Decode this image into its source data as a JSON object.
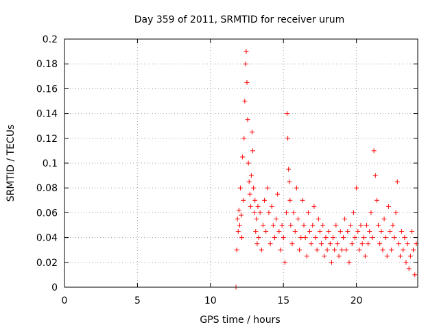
{
  "chart_data": {
    "type": "scatter",
    "title": "Day 359 of 2011, SRMTID for receiver urum",
    "xlabel": "GPS time / hours",
    "ylabel": "SRMTID / TECUs",
    "xlim": [
      0,
      24.2
    ],
    "ylim": [
      0,
      0.2
    ],
    "grid": true,
    "marker": "plus",
    "colors": {
      "points": "#ff0000",
      "grid": "#a0a0a0",
      "frame": "#000000"
    },
    "x_ticks": [
      {
        "value": 0,
        "label": "0"
      },
      {
        "value": 5,
        "label": "5"
      },
      {
        "value": 10,
        "label": "10"
      },
      {
        "value": 15,
        "label": "15"
      },
      {
        "value": 20,
        "label": "20"
      }
    ],
    "y_ticks": [
      {
        "value": 0,
        "label": "0"
      },
      {
        "value": 0.02,
        "label": "0.02"
      },
      {
        "value": 0.04,
        "label": "0.04"
      },
      {
        "value": 0.06,
        "label": "0.06"
      },
      {
        "value": 0.08,
        "label": "0.08"
      },
      {
        "value": 0.1,
        "label": "0.1"
      },
      {
        "value": 0.12,
        "label": "0.12"
      },
      {
        "value": 0.14,
        "label": "0.14"
      },
      {
        "value": 0.16,
        "label": "0.16"
      },
      {
        "value": 0.18,
        "label": "0.18"
      },
      {
        "value": 0.2,
        "label": "0.2"
      }
    ],
    "series": [
      {
        "x": [
          11.75,
          11.8,
          11.85,
          11.9,
          11.95,
          12.0,
          12.05,
          12.1,
          12.15,
          12.2,
          12.25,
          12.3,
          12.35,
          12.4,
          12.45,
          12.5,
          12.55,
          12.6,
          12.65,
          12.7,
          12.75,
          12.8,
          12.85,
          12.9,
          12.95,
          13.0,
          13.05,
          13.1,
          13.15,
          13.2,
          13.25,
          13.3,
          13.4,
          13.5,
          13.6,
          13.7,
          13.8,
          13.9,
          14.0,
          14.1,
          14.2,
          14.3,
          14.4,
          14.5,
          14.6,
          14.7,
          14.8,
          14.9,
          15.0,
          15.1,
          15.2,
          15.25,
          15.3,
          15.35,
          15.4,
          15.45,
          15.5,
          15.6,
          15.7,
          15.8,
          15.9,
          16.0,
          16.1,
          16.2,
          16.3,
          16.4,
          16.5,
          16.6,
          16.7,
          16.8,
          16.9,
          17.0,
          17.1,
          17.2,
          17.3,
          17.4,
          17.5,
          17.6,
          17.7,
          17.8,
          17.9,
          18.0,
          18.1,
          18.2,
          18.3,
          18.4,
          18.5,
          18.6,
          18.7,
          18.8,
          18.9,
          19.0,
          19.1,
          19.2,
          19.3,
          19.4,
          19.5,
          19.6,
          19.7,
          19.8,
          19.9,
          20.0,
          20.1,
          20.2,
          20.3,
          20.4,
          20.5,
          20.6,
          20.7,
          20.8,
          20.9,
          21.0,
          21.1,
          21.2,
          21.3,
          21.4,
          21.5,
          21.6,
          21.7,
          21.8,
          21.9,
          22.0,
          22.1,
          22.2,
          22.3,
          22.4,
          22.5,
          22.6,
          22.7,
          22.8,
          22.9,
          23.0,
          23.1,
          23.2,
          23.3,
          23.4,
          23.5,
          23.6,
          23.7,
          23.8,
          23.9,
          24.0,
          24.1
        ],
        "y": [
          0.0,
          0.03,
          0.055,
          0.045,
          0.062,
          0.05,
          0.08,
          0.058,
          0.04,
          0.105,
          0.07,
          0.12,
          0.15,
          0.18,
          0.19,
          0.165,
          0.135,
          0.1,
          0.085,
          0.075,
          0.065,
          0.09,
          0.125,
          0.11,
          0.08,
          0.06,
          0.07,
          0.045,
          0.055,
          0.035,
          0.065,
          0.04,
          0.06,
          0.03,
          0.05,
          0.07,
          0.045,
          0.08,
          0.06,
          0.035,
          0.065,
          0.05,
          0.04,
          0.055,
          0.075,
          0.045,
          0.03,
          0.05,
          0.04,
          0.02,
          0.06,
          0.14,
          0.12,
          0.095,
          0.085,
          0.07,
          0.05,
          0.035,
          0.06,
          0.045,
          0.08,
          0.055,
          0.03,
          0.04,
          0.07,
          0.05,
          0.04,
          0.025,
          0.06,
          0.045,
          0.035,
          0.05,
          0.065,
          0.04,
          0.03,
          0.055,
          0.045,
          0.035,
          0.05,
          0.025,
          0.04,
          0.03,
          0.045,
          0.035,
          0.02,
          0.04,
          0.03,
          0.05,
          0.035,
          0.025,
          0.045,
          0.03,
          0.04,
          0.055,
          0.03,
          0.045,
          0.02,
          0.05,
          0.035,
          0.06,
          0.04,
          0.08,
          0.045,
          0.03,
          0.05,
          0.035,
          0.04,
          0.025,
          0.05,
          0.035,
          0.045,
          0.06,
          0.04,
          0.11,
          0.09,
          0.07,
          0.05,
          0.035,
          0.045,
          0.03,
          0.055,
          0.04,
          0.025,
          0.065,
          0.045,
          0.03,
          0.05,
          0.04,
          0.06,
          0.085,
          0.035,
          0.025,
          0.045,
          0.03,
          0.04,
          0.02,
          0.035,
          0.015,
          0.025,
          0.045,
          0.03,
          0.01,
          0.035
        ]
      }
    ]
  }
}
